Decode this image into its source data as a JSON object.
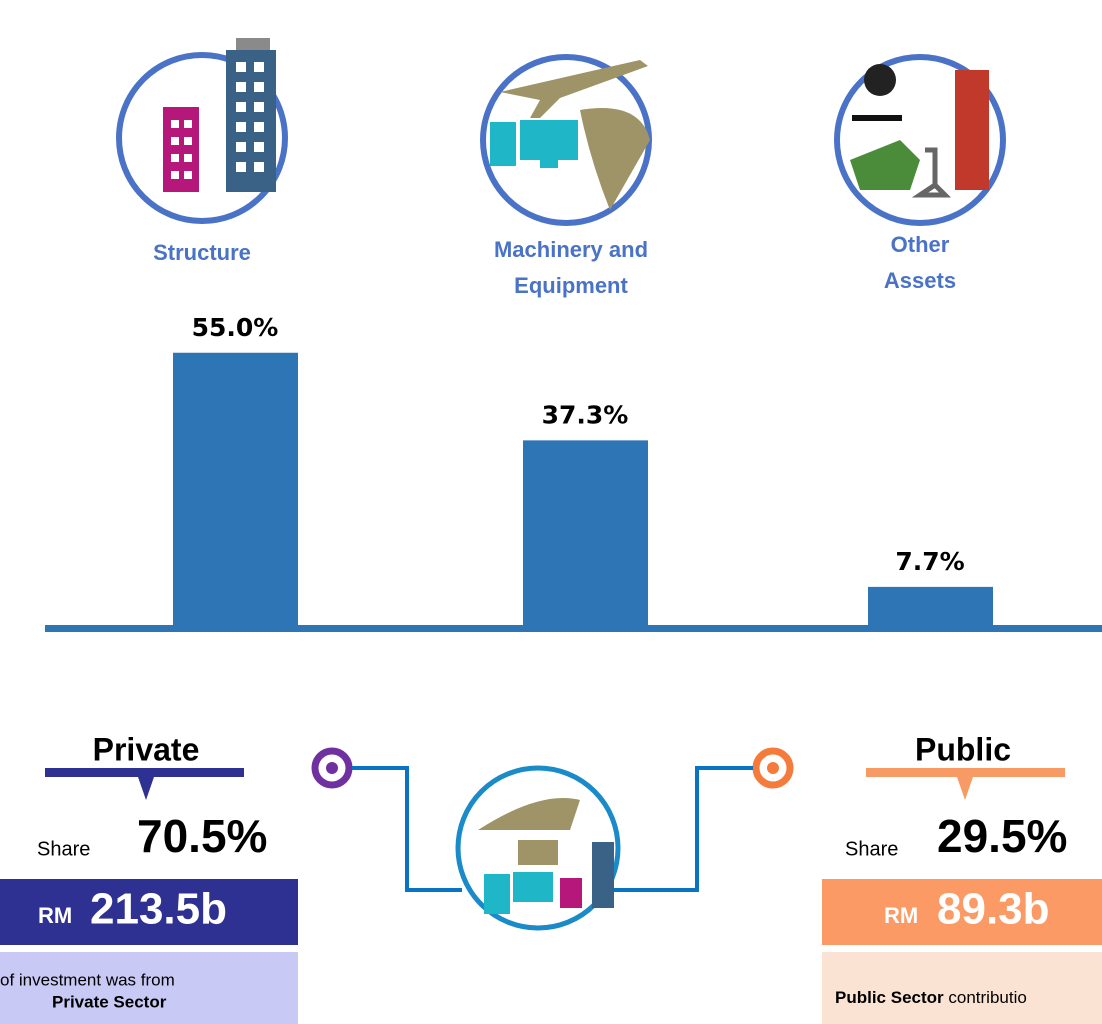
{
  "chart_data": {
    "type": "bar",
    "categories": [
      "Structure",
      "Machinery and Equipment",
      "Other Assets"
    ],
    "values": [
      55.0,
      37.3,
      7.7
    ],
    "value_labels": [
      "55.0%",
      "37.3%",
      "7.7%"
    ],
    "color": "#2e75b6",
    "ylim": [
      0,
      60
    ]
  },
  "private": {
    "title": "Private",
    "share_label": "Share",
    "share": "70.5%",
    "currency": "RM",
    "amount": "213.5b",
    "note": "of investment was from",
    "note_bold": "Private Sector"
  },
  "public": {
    "title": "Public",
    "share_label": "Share",
    "share": "29.5%",
    "currency": "RM",
    "amount": "89.3b",
    "note_bold": "Public Sector",
    "note": "contributio"
  }
}
